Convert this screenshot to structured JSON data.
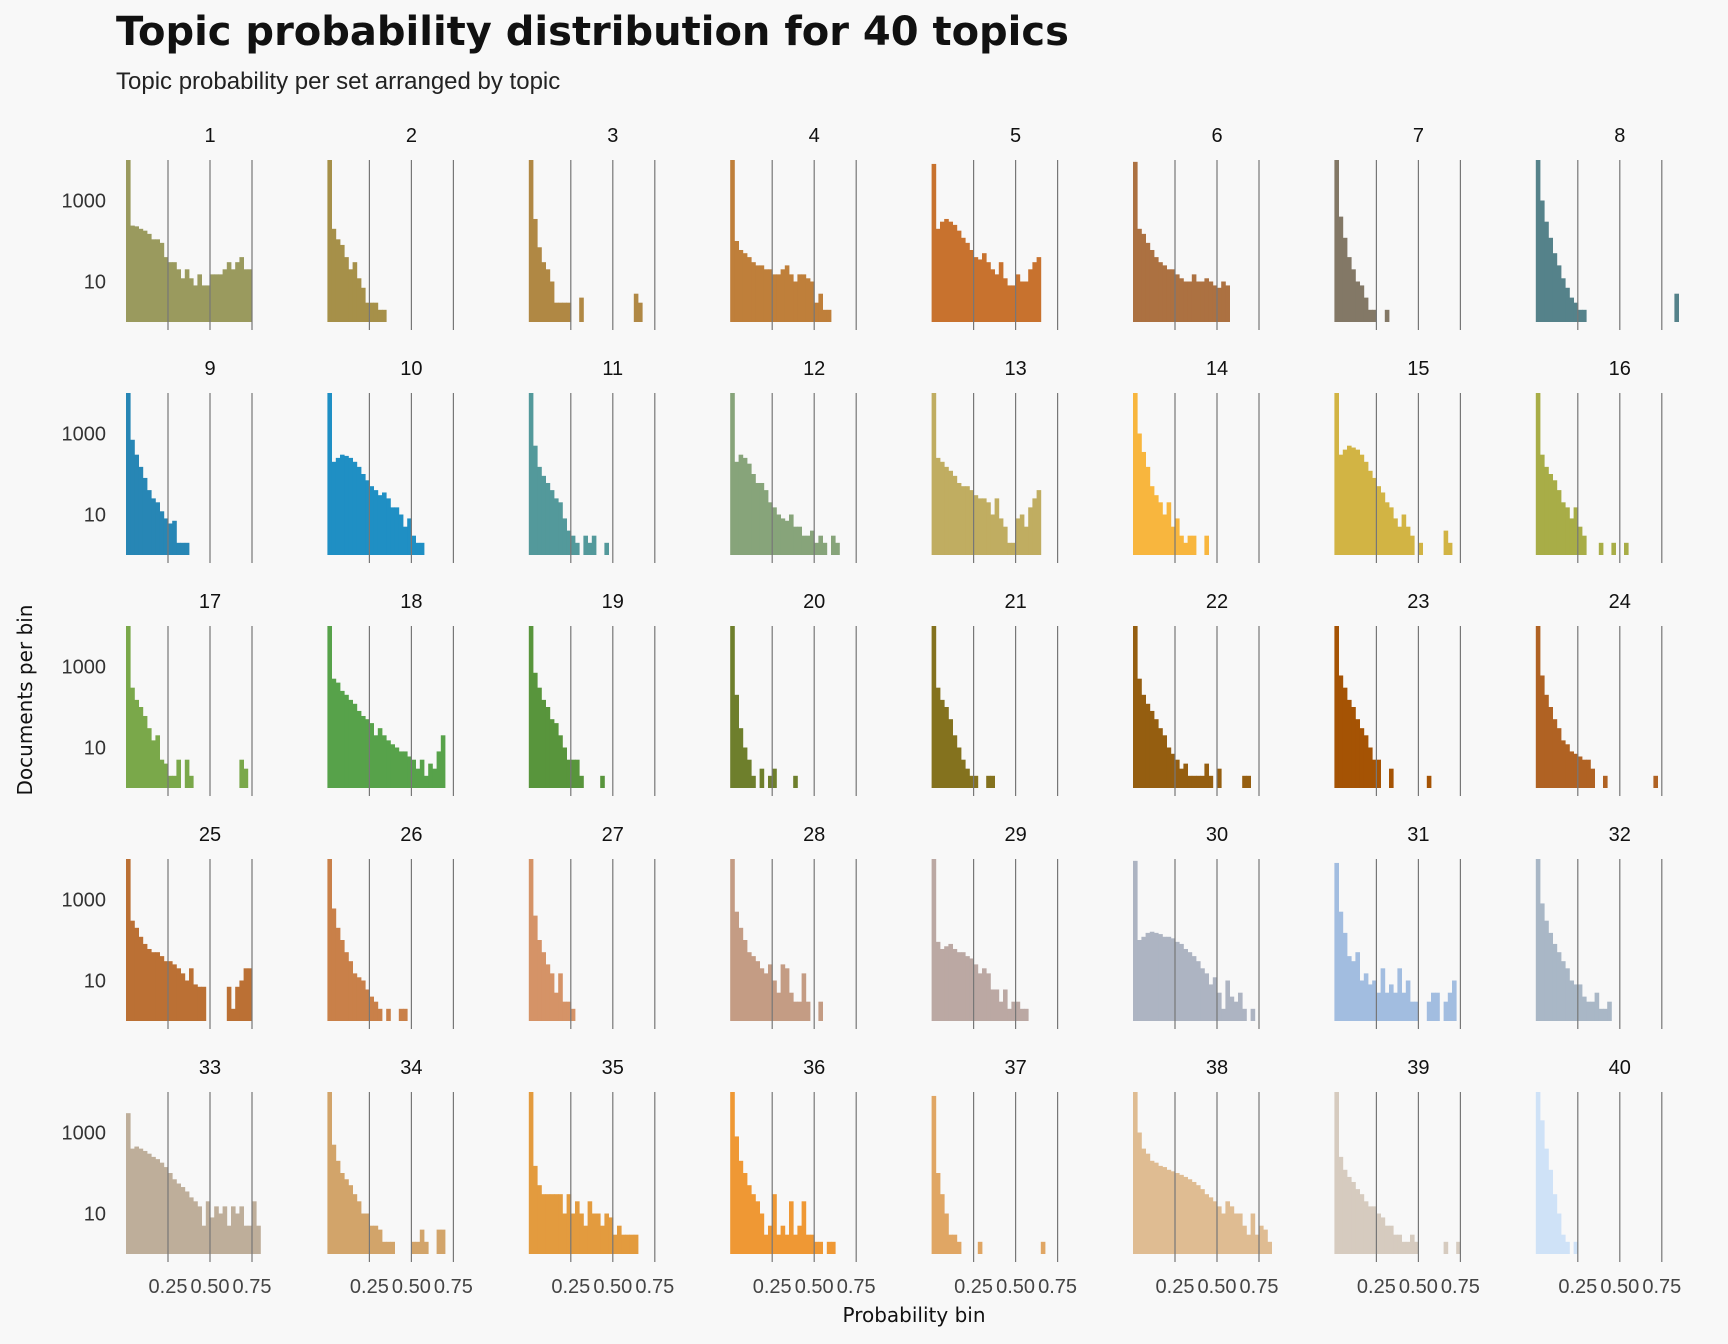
{
  "chart_data": {
    "type": "bar",
    "title": "Topic probability distribution for 40 topics",
    "subtitle": "Topic probability per set arranged by topic",
    "xlabel": "Probability bin",
    "ylabel": "Documents per bin",
    "y_scale": "log",
    "ylim": [
      1,
      10000
    ],
    "y_ticks": [
      1000,
      10
    ],
    "y_tick_labels": [
      "1000",
      "10"
    ],
    "xlim": [
      0,
      1
    ],
    "x_ticks": [
      0.25,
      0.5,
      0.75
    ],
    "x_tick_labels": [
      "0.25",
      "0.50",
      "0.75"
    ],
    "grid": "vertical lines at x ticks",
    "legend": "none",
    "bin_width": 0.025,
    "topics": [
      {
        "topic": "1",
        "color": "#9a9a5e",
        "counts": [
          10000,
          240,
          230,
          200,
          180,
          150,
          110,
          110,
          90,
          40,
          30,
          30,
          20,
          12,
          20,
          12,
          8,
          15,
          8,
          8,
          15,
          15,
          15,
          20,
          30,
          20,
          30,
          40,
          20,
          20
        ]
      },
      {
        "topic": "2",
        "color": "#a69049",
        "counts": [
          10000,
          200,
          110,
          80,
          40,
          20,
          30,
          12,
          7,
          3,
          3,
          3,
          2,
          2
        ]
      },
      {
        "topic": "3",
        "color": "#b08844",
        "counts": [
          10000,
          350,
          70,
          30,
          20,
          10,
          3,
          3,
          3,
          3,
          0,
          0,
          4,
          0,
          0,
          0,
          0,
          0,
          0,
          0,
          0,
          0,
          0,
          0,
          0,
          5,
          3
        ]
      },
      {
        "topic": "4",
        "color": "#bf7f3a",
        "counts": [
          10000,
          100,
          60,
          50,
          40,
          30,
          25,
          25,
          20,
          20,
          15,
          15,
          20,
          25,
          15,
          10,
          15,
          15,
          12,
          10,
          3,
          5,
          2,
          2
        ]
      },
      {
        "topic": "5",
        "color": "#c8722e",
        "counts": [
          8000,
          200,
          300,
          350,
          300,
          250,
          180,
          120,
          90,
          60,
          40,
          35,
          50,
          30,
          20,
          15,
          30,
          12,
          8,
          8,
          15,
          10,
          10,
          20,
          30,
          40
        ]
      },
      {
        "topic": "6",
        "color": "#ac7141",
        "counts": [
          9000,
          200,
          150,
          90,
          60,
          40,
          30,
          25,
          20,
          20,
          15,
          12,
          10,
          10,
          15,
          10,
          10,
          12,
          10,
          8,
          7,
          10,
          8
        ]
      },
      {
        "topic": "7",
        "color": "#837866",
        "counts": [
          10000,
          400,
          120,
          40,
          20,
          10,
          8,
          4,
          2,
          2,
          0,
          0,
          2
        ]
      },
      {
        "topic": "8",
        "color": "#55828a",
        "counts": [
          10000,
          1000,
          300,
          120,
          50,
          25,
          12,
          7,
          4,
          3,
          2,
          2,
          0,
          0,
          0,
          0,
          0,
          0,
          0,
          0,
          0,
          0,
          0,
          0,
          0,
          0,
          0,
          0,
          0,
          0,
          0,
          0,
          0,
          5
        ]
      },
      {
        "topic": "9",
        "color": "#2786b5",
        "counts": [
          10000,
          700,
          300,
          150,
          80,
          40,
          25,
          20,
          12,
          8,
          6,
          7,
          2,
          2,
          2
        ]
      },
      {
        "topic": "10",
        "color": "#1f8fc4",
        "counts": [
          10000,
          200,
          250,
          300,
          280,
          250,
          200,
          150,
          100,
          70,
          50,
          40,
          30,
          35,
          25,
          15,
          15,
          10,
          5,
          8,
          3,
          2,
          2
        ]
      },
      {
        "topic": "11",
        "color": "#53999b",
        "counts": [
          10000,
          500,
          150,
          90,
          60,
          40,
          25,
          20,
          8,
          4,
          3,
          2,
          0,
          3,
          2,
          3,
          0,
          0,
          2
        ]
      },
      {
        "topic": "12",
        "color": "#87a47a",
        "counts": [
          10000,
          200,
          300,
          250,
          180,
          100,
          60,
          60,
          40,
          20,
          15,
          10,
          8,
          7,
          10,
          5,
          5,
          3,
          3,
          4,
          2,
          3,
          2,
          0,
          3,
          2
        ]
      },
      {
        "topic": "13",
        "color": "#c0ad61",
        "counts": [
          10000,
          250,
          200,
          150,
          120,
          90,
          60,
          50,
          50,
          40,
          30,
          25,
          25,
          20,
          10,
          25,
          8,
          5,
          2,
          2,
          8,
          10,
          5,
          15,
          25,
          40
        ]
      },
      {
        "topic": "14",
        "color": "#f8b63e",
        "counts": [
          10000,
          1000,
          350,
          150,
          50,
          30,
          20,
          10,
          20,
          5,
          8,
          3,
          2,
          3,
          3,
          0,
          0,
          3
        ]
      },
      {
        "topic": "15",
        "color": "#d2b444",
        "counts": [
          10000,
          300,
          400,
          500,
          450,
          400,
          300,
          200,
          120,
          80,
          50,
          35,
          20,
          15,
          8,
          5,
          10,
          5,
          3,
          0,
          2,
          0,
          0,
          0,
          0,
          0,
          4,
          2
        ]
      },
      {
        "topic": "16",
        "color": "#a8ad47",
        "counts": [
          10000,
          300,
          150,
          100,
          70,
          40,
          20,
          15,
          8,
          15,
          5,
          3,
          0,
          0,
          0,
          2,
          0,
          0,
          2,
          0,
          0,
          2
        ]
      },
      {
        "topic": "17",
        "color": "#7aa84a",
        "counts": [
          10000,
          300,
          150,
          100,
          60,
          30,
          15,
          20,
          5,
          4,
          2,
          2,
          5,
          0,
          5,
          2,
          0,
          0,
          0,
          0,
          0,
          0,
          0,
          0,
          0,
          0,
          0,
          5,
          3
        ]
      },
      {
        "topic": "18",
        "color": "#57a24a",
        "counts": [
          10000,
          500,
          400,
          250,
          200,
          150,
          120,
          80,
          60,
          50,
          40,
          20,
          30,
          20,
          15,
          12,
          10,
          8,
          8,
          6,
          5,
          3,
          5,
          2,
          4,
          3,
          8,
          20
        ]
      },
      {
        "topic": "19",
        "color": "#58953c",
        "counts": [
          10000,
          700,
          300,
          150,
          100,
          50,
          40,
          20,
          10,
          5,
          5,
          5,
          2,
          0,
          0,
          0,
          0,
          2
        ]
      },
      {
        "topic": "20",
        "color": "#6e7f2c",
        "counts": [
          10000,
          200,
          30,
          10,
          5,
          2,
          0,
          3,
          0,
          2,
          3,
          0,
          0,
          0,
          0,
          2
        ]
      },
      {
        "topic": "21",
        "color": "#84721e",
        "counts": [
          10000,
          300,
          150,
          100,
          50,
          20,
          10,
          5,
          3,
          2,
          2,
          0,
          0,
          2,
          2
        ]
      },
      {
        "topic": "22",
        "color": "#955e10",
        "counts": [
          10000,
          500,
          200,
          120,
          80,
          50,
          30,
          20,
          10,
          7,
          5,
          3,
          4,
          2,
          2,
          2,
          2,
          4,
          2,
          0,
          3,
          0,
          0,
          0,
          0,
          0,
          2,
          2
        ]
      },
      {
        "topic": "23",
        "color": "#a55304",
        "counts": [
          10000,
          600,
          300,
          150,
          100,
          50,
          30,
          20,
          10,
          5,
          5,
          0,
          0,
          3,
          0,
          0,
          0,
          0,
          0,
          0,
          0,
          0,
          2
        ]
      },
      {
        "topic": "24",
        "color": "#b06223",
        "counts": [
          10000,
          600,
          200,
          100,
          50,
          30,
          15,
          12,
          8,
          7,
          6,
          5,
          5,
          3,
          0,
          0,
          2,
          0,
          0,
          0,
          0,
          0,
          0,
          0,
          0,
          0,
          0,
          0,
          2
        ]
      },
      {
        "topic": "25",
        "color": "#bb7034",
        "counts": [
          10000,
          300,
          200,
          120,
          80,
          60,
          50,
          50,
          40,
          30,
          30,
          25,
          20,
          15,
          10,
          20,
          8,
          7,
          7,
          0,
          0,
          0,
          0,
          0,
          7,
          2,
          7,
          10,
          20,
          20
        ]
      },
      {
        "topic": "26",
        "color": "#c98049",
        "counts": [
          10000,
          600,
          200,
          100,
          50,
          30,
          15,
          12,
          10,
          6,
          4,
          3,
          2,
          0,
          2,
          0,
          0,
          2,
          2
        ]
      },
      {
        "topic": "27",
        "color": "#d59367",
        "counts": [
          10000,
          400,
          100,
          50,
          25,
          15,
          5,
          15,
          3,
          3,
          2
        ]
      },
      {
        "topic": "28",
        "color": "#c49c84",
        "counts": [
          10000,
          500,
          200,
          100,
          50,
          40,
          30,
          20,
          15,
          25,
          10,
          5,
          25,
          20,
          5,
          3,
          3,
          15,
          3,
          0,
          0,
          3
        ]
      },
      {
        "topic": "29",
        "color": "#bba8a3",
        "counts": [
          10000,
          90,
          60,
          70,
          80,
          60,
          50,
          50,
          40,
          35,
          25,
          15,
          20,
          15,
          6,
          6,
          3,
          6,
          2,
          3,
          3,
          2,
          2
        ]
      },
      {
        "topic": "30",
        "color": "#adb4c2",
        "counts": [
          9000,
          100,
          120,
          150,
          160,
          150,
          140,
          120,
          120,
          110,
          90,
          80,
          60,
          50,
          40,
          30,
          20,
          15,
          8,
          12,
          5,
          2,
          10,
          4,
          3,
          5,
          2,
          0,
          2
        ]
      },
      {
        "topic": "31",
        "color": "#a2bde0",
        "counts": [
          8000,
          500,
          150,
          40,
          30,
          50,
          10,
          15,
          8,
          10,
          5,
          20,
          5,
          8,
          5,
          20,
          5,
          10,
          3,
          3,
          0,
          0,
          3,
          5,
          5,
          0,
          3,
          5,
          10
        ]
      },
      {
        "topic": "32",
        "color": "#a9b7c6",
        "counts": [
          10000,
          800,
          300,
          150,
          80,
          50,
          30,
          20,
          10,
          8,
          8,
          4,
          3,
          3,
          5,
          2,
          2,
          3
        ]
      },
      {
        "topic": "33",
        "color": "#beae9a",
        "counts": [
          3000,
          400,
          450,
          400,
          350,
          300,
          250,
          220,
          180,
          140,
          100,
          70,
          55,
          45,
          35,
          25,
          20,
          15,
          5,
          20,
          8,
          15,
          10,
          15,
          5,
          15,
          10,
          15,
          5,
          5,
          20,
          5
        ]
      },
      {
        "topic": "34",
        "color": "#d2a46a",
        "counts": [
          10000,
          500,
          200,
          100,
          70,
          50,
          30,
          20,
          10,
          10,
          5,
          5,
          4,
          2,
          2,
          2,
          0,
          0,
          0,
          0,
          2,
          2,
          4,
          2,
          0,
          0,
          4,
          4
        ]
      },
      {
        "topic": "35",
        "color": "#e39b3e",
        "counts": [
          10000,
          150,
          50,
          30,
          30,
          30,
          30,
          30,
          10,
          30,
          10,
          20,
          10,
          5,
          20,
          10,
          10,
          5,
          10,
          8,
          3,
          5,
          3,
          3,
          3,
          3
        ]
      },
      {
        "topic": "36",
        "color": "#ef9834",
        "counts": [
          10000,
          800,
          200,
          100,
          50,
          30,
          20,
          10,
          3,
          5,
          30,
          3,
          5,
          3,
          20,
          3,
          5,
          20,
          3,
          3,
          2,
          2,
          0,
          2,
          2
        ]
      },
      {
        "topic": "37",
        "color": "#e0a664",
        "counts": [
          8000,
          100,
          30,
          10,
          3,
          3,
          2,
          0,
          0,
          0,
          0,
          2,
          0,
          0,
          0,
          0,
          0,
          0,
          0,
          0,
          0,
          0,
          0,
          0,
          0,
          0,
          2
        ]
      },
      {
        "topic": "38",
        "color": "#dfbc92",
        "counts": [
          10000,
          1000,
          400,
          300,
          200,
          180,
          150,
          140,
          120,
          110,
          100,
          90,
          80,
          70,
          60,
          50,
          40,
          30,
          25,
          20,
          15,
          10,
          20,
          15,
          10,
          10,
          5,
          3,
          10,
          3,
          5,
          4,
          2
        ]
      },
      {
        "topic": "39",
        "color": "#d6cbbf",
        "counts": [
          10000,
          250,
          120,
          80,
          60,
          40,
          30,
          20,
          15,
          15,
          10,
          8,
          5,
          5,
          3,
          3,
          2,
          2,
          3,
          2,
          0,
          0,
          0,
          0,
          0,
          0,
          2,
          0,
          0,
          2
        ]
      },
      {
        "topic": "40",
        "color": "#cfe2f7",
        "counts": [
          10000,
          2000,
          400,
          120,
          30,
          10,
          3,
          2,
          0,
          2
        ]
      }
    ]
  }
}
